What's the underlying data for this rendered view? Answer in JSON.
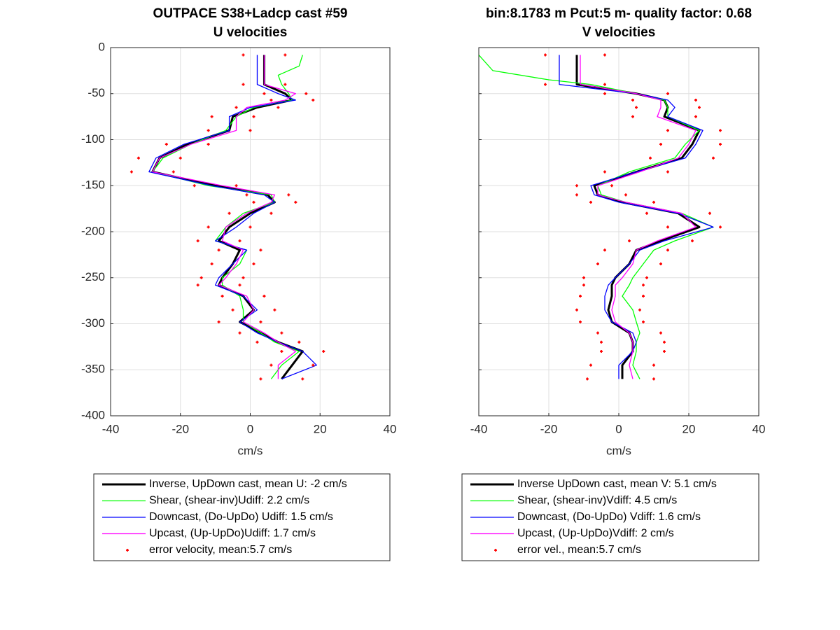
{
  "chart_data": [
    {
      "type": "line",
      "title": "OUTPACE S38+Ladcp cast #59",
      "subtitle": "U velocities",
      "xlabel": "cm/s",
      "xlim": [
        -40,
        40
      ],
      "xticks": [
        -40,
        -20,
        0,
        20,
        40
      ],
      "ylim": [
        -400,
        0
      ],
      "yticks": [
        0,
        -50,
        -100,
        -150,
        -200,
        -250,
        -300,
        -350,
        -400
      ],
      "ytick_labels": true,
      "grid": true,
      "series": [
        {
          "name": "Inverse, UpDown cast, mean U:  -2 cm/s",
          "color": "#000000",
          "width": 3,
          "x": [
            4,
            4,
            10,
            12,
            2,
            -5,
            -6,
            -18,
            -26,
            -28,
            -10,
            5,
            7,
            0,
            -6,
            -9,
            -3,
            -5,
            -8,
            -9,
            -2,
            1,
            -3,
            3,
            8,
            15,
            12,
            9
          ],
          "y": [
            -8,
            -40,
            -50,
            -57,
            -65,
            -75,
            -90,
            -105,
            -120,
            -135,
            -150,
            -160,
            -168,
            -180,
            -195,
            -210,
            -220,
            -235,
            -250,
            -258,
            -270,
            -285,
            -298,
            -310,
            -320,
            -330,
            -345,
            -360
          ]
        },
        {
          "name": "Shear, (shear-inv)Udiff:  2.2 cm/s",
          "color": "#00ff00",
          "width": 1.3,
          "x": [
            15,
            14,
            8,
            9,
            11,
            12,
            1,
            -4,
            -7,
            -17,
            -25,
            -28,
            -12,
            6,
            7,
            -2,
            -7,
            -10,
            -1,
            -3,
            -8,
            -8,
            -3,
            -2,
            -2,
            3,
            7,
            14,
            9,
            6
          ],
          "y": [
            -8,
            -20,
            -30,
            -40,
            -50,
            -57,
            -65,
            -75,
            -90,
            -105,
            -120,
            -135,
            -150,
            -160,
            -168,
            -180,
            -195,
            -210,
            -220,
            -235,
            -250,
            -258,
            -270,
            -285,
            -298,
            -310,
            -320,
            -330,
            -345,
            -360
          ]
        },
        {
          "name": "Downcast, (Do-UpDo) Udiff:  1.5 cm/s",
          "color": "#0000ff",
          "width": 1.3,
          "x": [
            2,
            2,
            8,
            13,
            0,
            -6,
            -6,
            -19,
            -27,
            -29,
            -11,
            4,
            7,
            1,
            -4,
            -10,
            -1,
            -5,
            -9,
            -10,
            -2,
            2,
            -3,
            2,
            8,
            15,
            19,
            9
          ],
          "y": [
            -8,
            -40,
            -50,
            -57,
            -65,
            -75,
            -90,
            -105,
            -120,
            -135,
            -150,
            -160,
            -168,
            -180,
            -195,
            -210,
            -220,
            -235,
            -250,
            -258,
            -270,
            -285,
            -298,
            -310,
            -320,
            -330,
            -345,
            -360
          ]
        },
        {
          "name": "Upcast, (Up-UpDo)Udiff:  1.7 cm/s",
          "color": "#ff00ff",
          "width": 1.3,
          "x": [
            4,
            4,
            13,
            10,
            -1,
            -4,
            -4,
            -17,
            -26,
            -28,
            -8,
            7,
            6,
            -1,
            -7,
            -8,
            -2,
            -4,
            -7,
            -9,
            -1,
            1,
            -2,
            4,
            8,
            13,
            8,
            8
          ],
          "y": [
            -8,
            -40,
            -50,
            -57,
            -65,
            -75,
            -90,
            -105,
            -120,
            -135,
            -150,
            -160,
            -168,
            -180,
            -195,
            -210,
            -220,
            -235,
            -250,
            -258,
            -270,
            -285,
            -298,
            -310,
            -320,
            -330,
            -345,
            -360
          ]
        },
        {
          "name": "error velocity, mean:5.7 cm/s",
          "color": "#ff0000",
          "marker": "dot",
          "x": [
            -2,
            -2,
            4,
            6,
            -4,
            -11,
            -12,
            -24,
            -32,
            -34,
            -16,
            -1,
            1,
            -6,
            -12,
            -15,
            -9,
            -11,
            -14,
            -15,
            -8,
            -5,
            -9,
            -3,
            2,
            9,
            6,
            3,
            10,
            10,
            16,
            18,
            8,
            1,
            0,
            -12,
            -20,
            -22,
            -4,
            11,
            13,
            6,
            0,
            -3,
            3,
            1,
            -2,
            -3,
            4,
            7,
            3,
            9,
            14,
            21,
            18,
            15
          ],
          "y": [
            -8,
            -40,
            -50,
            -57,
            -65,
            -75,
            -90,
            -105,
            -120,
            -135,
            -150,
            -160,
            -168,
            -180,
            -195,
            -210,
            -220,
            -235,
            -250,
            -258,
            -270,
            -285,
            -298,
            -310,
            -320,
            -330,
            -345,
            -360,
            -8,
            -40,
            -50,
            -57,
            -65,
            -75,
            -90,
            -105,
            -120,
            -135,
            -150,
            -160,
            -168,
            -180,
            -195,
            -210,
            -220,
            -235,
            -250,
            -258,
            -270,
            -285,
            -298,
            -310,
            -320,
            -330,
            -345,
            -360
          ]
        }
      ]
    },
    {
      "type": "line",
      "title": "bin:8.1783 m  Pcut:5 m- quality factor:  0.68",
      "subtitle": "V velocities",
      "xlabel": "cm/s",
      "xlim": [
        -40,
        40
      ],
      "xticks": [
        -40,
        -20,
        0,
        20,
        40
      ],
      "ylim": [
        -400,
        0
      ],
      "yticks": [
        0,
        -50,
        -100,
        -150,
        -200,
        -250,
        -300,
        -350,
        -400
      ],
      "ytick_labels": false,
      "grid": true,
      "series": [
        {
          "name": "Inverse UpDown cast, mean V:  5.1 cm/s",
          "color": "#000000",
          "width": 3,
          "x": [
            -12,
            -12,
            5,
            13,
            14,
            13,
            23,
            21,
            18,
            5,
            -7,
            -6,
            1,
            17,
            23,
            12,
            5,
            3,
            -1,
            -2,
            -2,
            -3,
            -2,
            3,
            4,
            4,
            1,
            1
          ],
          "y": [
            -8,
            -40,
            -50,
            -57,
            -65,
            -75,
            -90,
            -105,
            -120,
            -135,
            -150,
            -160,
            -168,
            -180,
            -195,
            -210,
            -220,
            -235,
            -250,
            -258,
            -270,
            -285,
            -298,
            -310,
            -320,
            -330,
            -345,
            -360
          ]
        },
        {
          "name": "Shear, (shear-inv)Vdiff:  4.5 cm/s",
          "color": "#00ff00",
          "width": 1.3,
          "x": [
            -40,
            -36,
            -20,
            -8,
            5,
            13,
            14,
            14,
            23,
            19,
            16,
            3,
            -6,
            -5,
            2,
            18,
            27,
            16,
            10,
            7,
            4,
            3,
            1,
            4,
            5,
            6,
            5,
            5,
            4,
            6
          ],
          "y": [
            -8,
            -25,
            -35,
            -40,
            -50,
            -57,
            -65,
            -75,
            -90,
            -105,
            -120,
            -135,
            -150,
            -160,
            -168,
            -180,
            -195,
            -210,
            -220,
            -235,
            -250,
            -258,
            -270,
            -285,
            -298,
            -310,
            -320,
            -330,
            -345,
            -360
          ]
        },
        {
          "name": "Downcast, (Do-UpDo) Vdiff:  1.6 cm/s",
          "color": "#0000ff",
          "width": 1.3,
          "x": [
            -17,
            -17,
            5,
            14,
            16,
            14,
            24,
            22,
            19,
            5,
            -8,
            -7,
            0,
            17,
            27,
            13,
            6,
            3,
            -1,
            -3,
            -4,
            -4,
            -2,
            4,
            5,
            4,
            0,
            0
          ],
          "y": [
            -8,
            -40,
            -50,
            -57,
            -65,
            -75,
            -90,
            -105,
            -120,
            -135,
            -150,
            -160,
            -168,
            -180,
            -195,
            -210,
            -220,
            -235,
            -250,
            -258,
            -270,
            -285,
            -298,
            -310,
            -320,
            -330,
            -345,
            -360
          ]
        },
        {
          "name": "Upcast, (Up-UpDo)Vdiff:  2 cm/s",
          "color": "#ff00ff",
          "width": 1.3,
          "x": [
            -11,
            -11,
            5,
            12,
            12,
            11,
            22,
            20,
            17,
            6,
            -6,
            -6,
            2,
            18,
            22,
            11,
            5,
            4,
            1,
            -1,
            -1,
            -2,
            -1,
            3,
            4,
            4,
            3,
            4
          ],
          "y": [
            -8,
            -40,
            -50,
            -57,
            -65,
            -75,
            -90,
            -105,
            -120,
            -135,
            -150,
            -160,
            -168,
            -180,
            -195,
            -210,
            -220,
            -235,
            -250,
            -258,
            -270,
            -285,
            -298,
            -310,
            -320,
            -330,
            -345,
            -360
          ]
        },
        {
          "name": "error vel., mean:5.7 cm/s",
          "color": "#ff0000",
          "marker": "dot",
          "x": [
            -21,
            -21,
            -4,
            4,
            5,
            4,
            14,
            12,
            9,
            -4,
            -12,
            -12,
            -8,
            8,
            14,
            3,
            -4,
            -6,
            -10,
            -10,
            -11,
            -12,
            -11,
            -6,
            -5,
            -5,
            -8,
            -9,
            -4,
            -4,
            14,
            22,
            23,
            22,
            29,
            29,
            27,
            14,
            -2,
            2,
            10,
            26,
            29,
            21,
            14,
            12,
            8,
            7,
            7,
            6,
            7,
            12,
            13,
            13,
            10,
            10
          ],
          "y": [
            -8,
            -40,
            -50,
            -57,
            -65,
            -75,
            -90,
            -105,
            -120,
            -135,
            -150,
            -160,
            -168,
            -180,
            -195,
            -210,
            -220,
            -235,
            -250,
            -258,
            -270,
            -285,
            -298,
            -310,
            -320,
            -330,
            -345,
            -360,
            -8,
            -40,
            -50,
            -57,
            -65,
            -75,
            -90,
            -105,
            -120,
            -135,
            -150,
            -160,
            -168,
            -180,
            -195,
            -210,
            -220,
            -235,
            -250,
            -258,
            -270,
            -285,
            -298,
            -310,
            -320,
            -330,
            -345,
            -360
          ]
        }
      ]
    }
  ]
}
